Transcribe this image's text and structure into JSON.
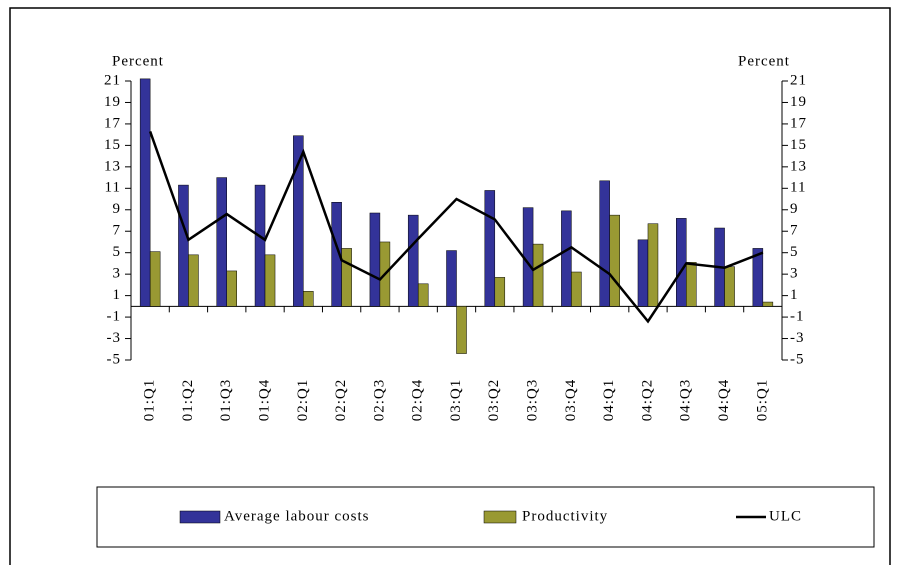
{
  "chart_data": {
    "type": "bar_line",
    "y_label": "Percent",
    "y2_label": "Percent",
    "categories": [
      "01:Q1",
      "01:Q2",
      "01:Q3",
      "01:Q4",
      "02:Q1",
      "02:Q2",
      "02:Q3",
      "02:Q4",
      "03:Q1",
      "03:Q2",
      "03:Q3",
      "03:Q4",
      "04:Q1",
      "04:Q2",
      "04:Q3",
      "04:Q4",
      "05:Q1"
    ],
    "series": [
      {
        "name": "Average labour costs",
        "type": "bar",
        "color": "#333399",
        "values": [
          21.2,
          11.3,
          12.0,
          11.3,
          15.9,
          9.7,
          8.7,
          8.5,
          5.2,
          10.8,
          9.2,
          8.9,
          11.7,
          6.2,
          8.2,
          7.3,
          5.4
        ]
      },
      {
        "name": "Productivity",
        "type": "bar",
        "color": "#999933",
        "values": [
          5.1,
          4.8,
          3.3,
          4.8,
          1.4,
          5.4,
          6.0,
          2.1,
          -4.4,
          2.7,
          5.8,
          3.2,
          8.5,
          7.7,
          4.1,
          3.7,
          0.4
        ]
      },
      {
        "name": "ULC",
        "type": "line",
        "color": "#000000",
        "values": [
          16.3,
          6.2,
          8.6,
          6.2,
          14.4,
          4.3,
          2.5,
          6.3,
          10.0,
          8.1,
          3.4,
          5.5,
          3.0,
          -1.4,
          4.0,
          3.6,
          5.0
        ]
      }
    ],
    "ylim": [
      -5,
      21
    ],
    "yticks": [
      21,
      19,
      17,
      15,
      13,
      11,
      9,
      7,
      5,
      3,
      1,
      -1,
      -3,
      -5
    ],
    "y2lim": [
      -5,
      21
    ],
    "y2ticks": [
      21,
      19,
      17,
      15,
      13,
      11,
      9,
      7,
      5,
      3,
      1,
      -1,
      -3,
      -5
    ]
  }
}
